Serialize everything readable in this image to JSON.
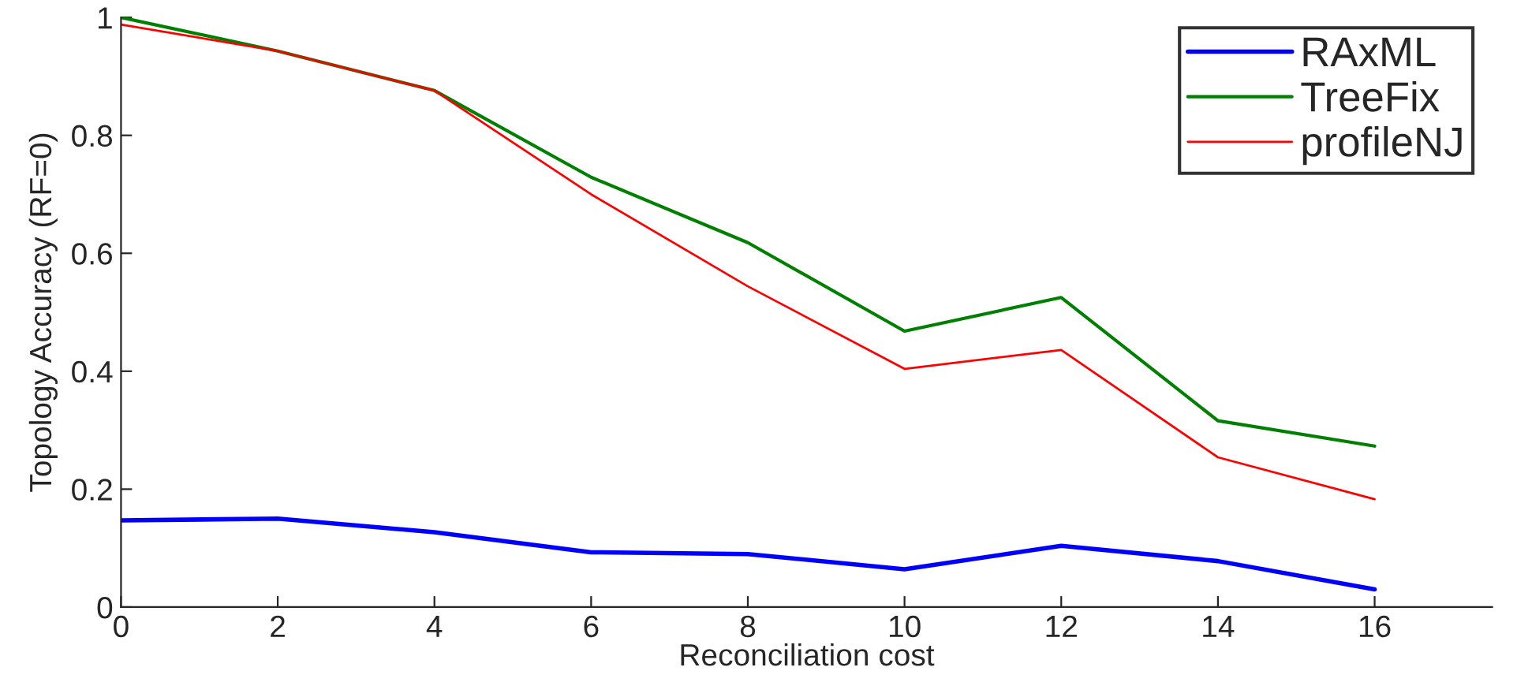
{
  "chart_data": {
    "type": "line",
    "xlabel": "Reconciliation cost",
    "ylabel": "Topology Accuracy (RF=0)",
    "x": [
      0,
      2,
      4,
      6,
      8,
      10,
      12,
      14,
      16
    ],
    "series": [
      {
        "name": "RAxML",
        "color": "#0000ff",
        "values": [
          0.147,
          0.15,
          0.127,
          0.093,
          0.09,
          0.064,
          0.104,
          0.078,
          0.03
        ]
      },
      {
        "name": "TreeFix",
        "color": "#008000",
        "values": [
          1.0,
          0.943,
          0.876,
          0.729,
          0.618,
          0.468,
          0.525,
          0.316,
          0.273
        ]
      },
      {
        "name": "profileNJ",
        "color": "#ff0000",
        "values": [
          0.988,
          0.943,
          0.876,
          0.7,
          0.544,
          0.404,
          0.436,
          0.254,
          0.183
        ]
      }
    ],
    "xlim": [
      0,
      17.5
    ],
    "xticks": [
      0,
      2,
      4,
      6,
      8,
      10,
      12,
      14,
      16
    ],
    "ylim": [
      0,
      1
    ],
    "yticks": [
      0,
      0.2,
      0.4,
      0.6,
      0.8,
      1
    ],
    "grid": false,
    "legend": "top right",
    "marker": "none",
    "line_style": "solid"
  }
}
